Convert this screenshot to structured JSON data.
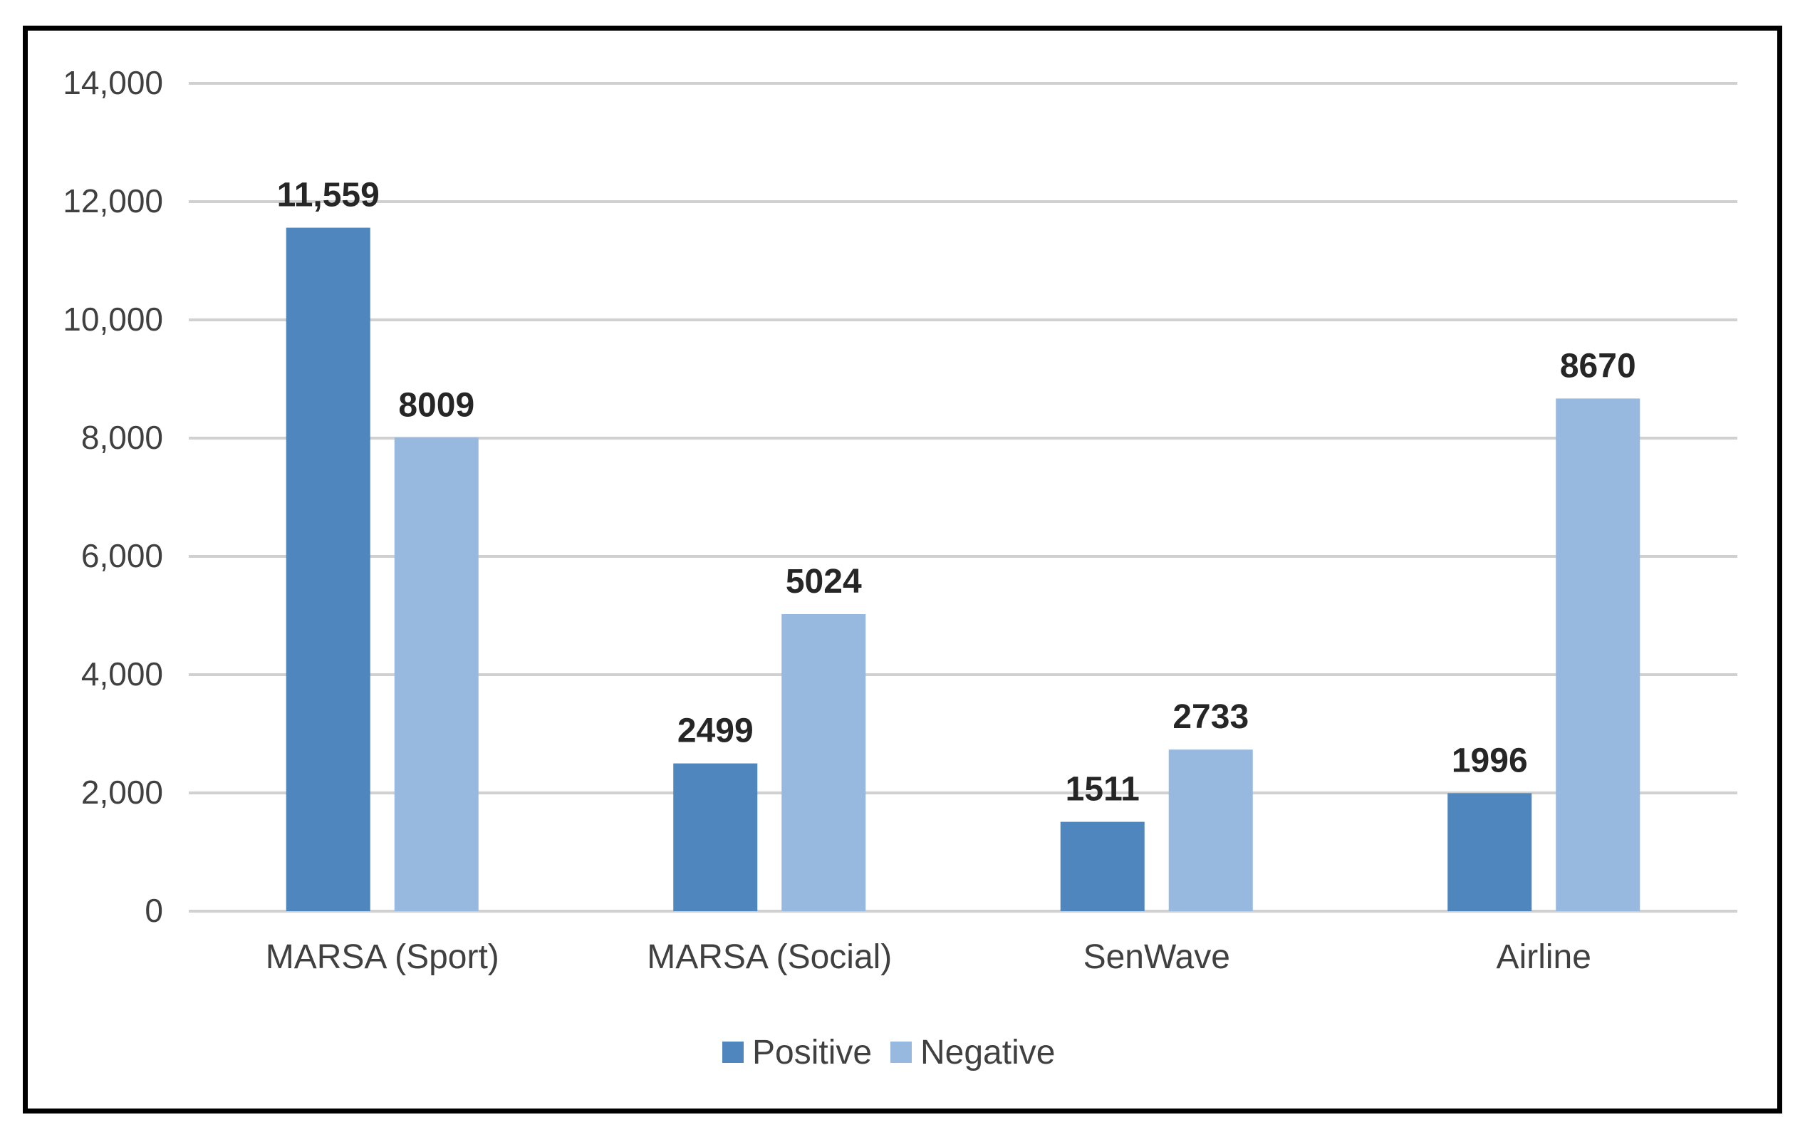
{
  "chart_data": {
    "type": "bar",
    "title": "",
    "xlabel": "",
    "ylabel": "",
    "categories": [
      "MARSA (Sport)",
      "MARSA (Social)",
      "SenWave",
      "Airline"
    ],
    "series": [
      {
        "name": "Positive",
        "color": "#4e86bd",
        "values": [
          11559,
          2499,
          1511,
          1996
        ],
        "labels": [
          "11,559",
          "2499",
          "1511",
          "1996"
        ]
      },
      {
        "name": "Negative",
        "color": "#97b9df",
        "values": [
          8009,
          5024,
          2733,
          8670
        ],
        "labels": [
          "8009",
          "5024",
          "2733",
          "8670"
        ]
      }
    ],
    "ylim": [
      0,
      14000
    ],
    "yticks": [
      0,
      2000,
      4000,
      6000,
      8000,
      10000,
      12000,
      14000
    ],
    "ytick_labels": [
      "0",
      "2,000",
      "4,000",
      "6,000",
      "8,000",
      "10,000",
      "12,000",
      "14,000"
    ],
    "grid": true,
    "legend_position": "bottom",
    "colors": {
      "gridline": "#d0d0d0",
      "text": "#404040",
      "frame": "#000000"
    }
  }
}
